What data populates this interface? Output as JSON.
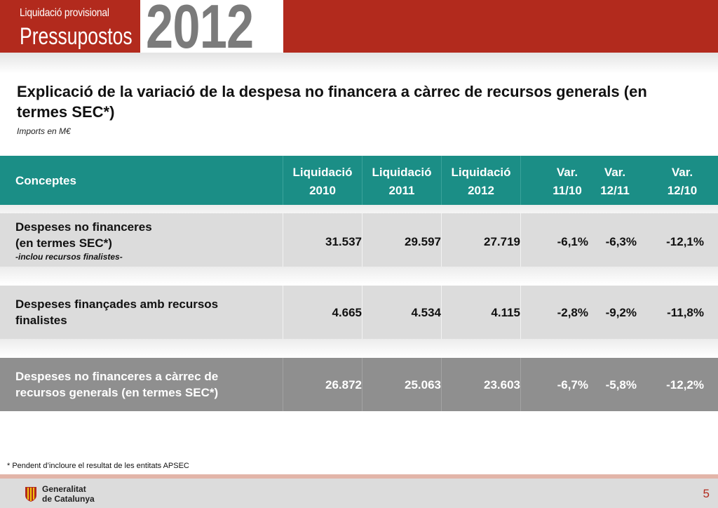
{
  "header": {
    "subtitle": "Liquidació provisional",
    "title": "Pressupostos",
    "year": "2012"
  },
  "page": {
    "title": "Explicació de la variació de la despesa no financera a càrrec de recursos generals (en termes SEC*)",
    "units": "Imports en  M€"
  },
  "table": {
    "headers": {
      "concepts": "Conceptes",
      "liq2010_l1": "Liquidació",
      "liq2010_l2": "2010",
      "liq2011_l1": "Liquidació",
      "liq2011_l2": "2011",
      "liq2012_l1": "Liquidació",
      "liq2012_l2": "2012",
      "var1110_l1": "Var.",
      "var1110_l2": "11/10",
      "var1211_l1": "Var.",
      "var1211_l2": "12/11",
      "var1210_l1": "Var.",
      "var1210_l2": "12/10"
    },
    "rows": [
      {
        "label_l1": "Despeses no financeres",
        "label_l2": "(en termes SEC*)",
        "note": "-inclou recursos finalistes-",
        "liq2010": "31.537",
        "liq2011": "29.597",
        "liq2012": "27.719",
        "var1110": "-6,1%",
        "var1211": "-6,3%",
        "var1210": "-12,1%"
      },
      {
        "label_l1": "Despeses finançades amb recursos",
        "label_l2": "finalistes",
        "liq2010": "4.665",
        "liq2011": "4.534",
        "liq2012": "4.115",
        "var1110": "-2,8%",
        "var1211": "-9,2%",
        "var1210": "-11,8%"
      },
      {
        "label_l1": "Despeses no financeres a càrrec de",
        "label_l2": "recursos generals (en termes SEC*)",
        "liq2010": "26.872",
        "liq2011": "25.063",
        "liq2012": "23.603",
        "var1110": "-6,7%",
        "var1211": "-5,8%",
        "var1210": "-12,2%"
      }
    ]
  },
  "footnote": "* Pendent d’incloure el resultat de les entitats APSEC",
  "footer": {
    "org_l1": "Generalitat",
    "org_l2": "de Catalunya",
    "page_number": "5"
  },
  "colors": {
    "brand_red": "#b22a1d",
    "header_teal": "#1b8e86",
    "row_light": "#dcdcdc",
    "row_dark": "#8f8f8f",
    "year_gray": "#7b7b7b"
  }
}
